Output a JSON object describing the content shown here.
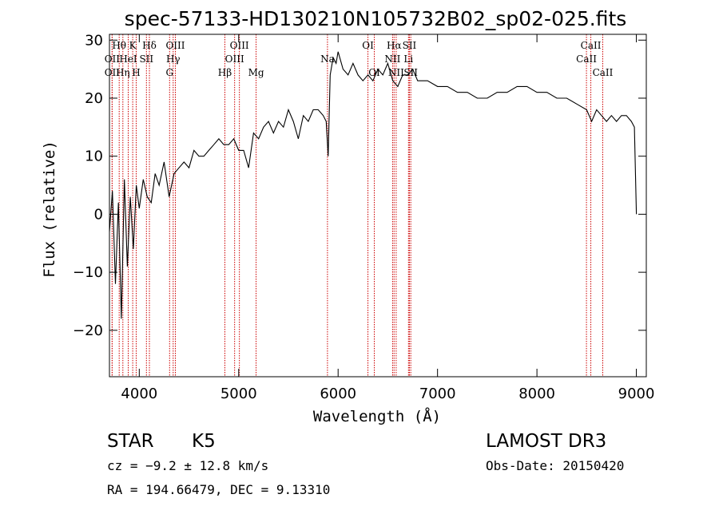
{
  "chart_data": {
    "type": "line",
    "title": "spec-57133-HD130210N105732B02_sp02-025.fits",
    "xlabel": "Wavelength (Å)",
    "ylabel": "Flux (relative)",
    "xlim": [
      3700,
      9100
    ],
    "ylim": [
      -28,
      31
    ],
    "x_ticks": [
      4000,
      5000,
      6000,
      7000,
      8000,
      9000
    ],
    "y_ticks": [
      -20,
      -10,
      0,
      10,
      20,
      30
    ],
    "y_tick_labels": [
      "−20",
      "−10",
      "0",
      "10",
      "20",
      "30"
    ],
    "series": [
      {
        "name": "flux",
        "color": "#000000",
        "x": [
          3700,
          3730,
          3760,
          3790,
          3820,
          3850,
          3880,
          3910,
          3940,
          3970,
          4000,
          4040,
          4080,
          4120,
          4160,
          4200,
          4250,
          4300,
          4350,
          4400,
          4450,
          4500,
          4550,
          4600,
          4650,
          4700,
          4750,
          4800,
          4850,
          4900,
          4950,
          5000,
          5050,
          5100,
          5150,
          5200,
          5250,
          5300,
          5350,
          5400,
          5450,
          5500,
          5550,
          5600,
          5650,
          5700,
          5750,
          5800,
          5850,
          5880,
          5900,
          5920,
          5950,
          5980,
          6000,
          6050,
          6100,
          6150,
          6200,
          6250,
          6300,
          6350,
          6400,
          6450,
          6500,
          6550,
          6600,
          6650,
          6700,
          6750,
          6800,
          6900,
          7000,
          7100,
          7200,
          7300,
          7400,
          7500,
          7600,
          7700,
          7800,
          7900,
          8000,
          8100,
          8200,
          8300,
          8400,
          8500,
          8550,
          8600,
          8650,
          8700,
          8750,
          8800,
          8850,
          8900,
          8950,
          8980,
          9000
        ],
        "y": [
          -3,
          4,
          -12,
          2,
          -18,
          6,
          -9,
          3,
          -6,
          5,
          1,
          6,
          3,
          2,
          7,
          5,
          9,
          3,
          7,
          8,
          9,
          8,
          11,
          10,
          10,
          11,
          12,
          13,
          12,
          12,
          13,
          11,
          11,
          8,
          14,
          13,
          15,
          16,
          14,
          16,
          15,
          18,
          16,
          13,
          17,
          16,
          18,
          18,
          17,
          16,
          10,
          24,
          27,
          26,
          28,
          25,
          24,
          26,
          24,
          23,
          24,
          23,
          25,
          24,
          26,
          23,
          22,
          24,
          24,
          25,
          23,
          23,
          22,
          22,
          21,
          21,
          20,
          20,
          21,
          21,
          22,
          22,
          21,
          21,
          20,
          20,
          19,
          18,
          16,
          18,
          17,
          16,
          17,
          16,
          17,
          17,
          16,
          15,
          0
        ]
      }
    ],
    "lines": [
      {
        "name": "Hθ",
        "wl": 3798,
        "row": 0
      },
      {
        "name": "K",
        "wl": 3934,
        "row": 0
      },
      {
        "name": "Hδ",
        "wl": 4102,
        "row": 0
      },
      {
        "name": "OII",
        "wl": 3727,
        "row": 1
      },
      {
        "name": "HeI",
        "wl": 3889,
        "row": 1
      },
      {
        "name": "SII",
        "wl": 4072,
        "row": 1
      },
      {
        "name": "OII",
        "wl": 3727,
        "row": 2
      },
      {
        "name": "Hη",
        "wl": 3835,
        "row": 2
      },
      {
        "name": "H",
        "wl": 3969,
        "row": 2
      },
      {
        "name": "OIII",
        "wl": 4363,
        "row": 0
      },
      {
        "name": "Hγ",
        "wl": 4341,
        "row": 1
      },
      {
        "name": "G",
        "wl": 4305,
        "row": 2
      },
      {
        "name": "Hβ",
        "wl": 4861,
        "row": 2
      },
      {
        "name": "OIII",
        "wl": 5007,
        "row": 0
      },
      {
        "name": "OIII",
        "wl": 4959,
        "row": 1
      },
      {
        "name": "Mg",
        "wl": 5175,
        "row": 2
      },
      {
        "name": "Na",
        "wl": 5893,
        "row": 1
      },
      {
        "name": "OI",
        "wl": 6300,
        "row": 0
      },
      {
        "name": "OI",
        "wl": 6364,
        "row": 2
      },
      {
        "name": "Hα",
        "wl": 6563,
        "row": 0
      },
      {
        "name": "SII",
        "wl": 6717,
        "row": 0
      },
      {
        "name": "NII",
        "wl": 6548,
        "row": 1
      },
      {
        "name": "Li",
        "wl": 6708,
        "row": 1
      },
      {
        "name": "NII",
        "wl": 6584,
        "row": 2
      },
      {
        "name": "SII",
        "wl": 6731,
        "row": 2
      },
      {
        "name": "CaII",
        "wl": 8542,
        "row": 0
      },
      {
        "name": "CaII",
        "wl": 8498,
        "row": 1
      },
      {
        "name": "CaII",
        "wl": 8662,
        "row": 2
      }
    ],
    "line_color": "#cc0000"
  },
  "info": {
    "class": "STAR",
    "subclass": "K5",
    "survey": "LAMOST DR3",
    "cz": "cz = −9.2 ± 12.8 km/s",
    "obs_date": "Obs-Date: 20150420",
    "radec": "RA = 194.66479, DEC =    9.13310"
  }
}
